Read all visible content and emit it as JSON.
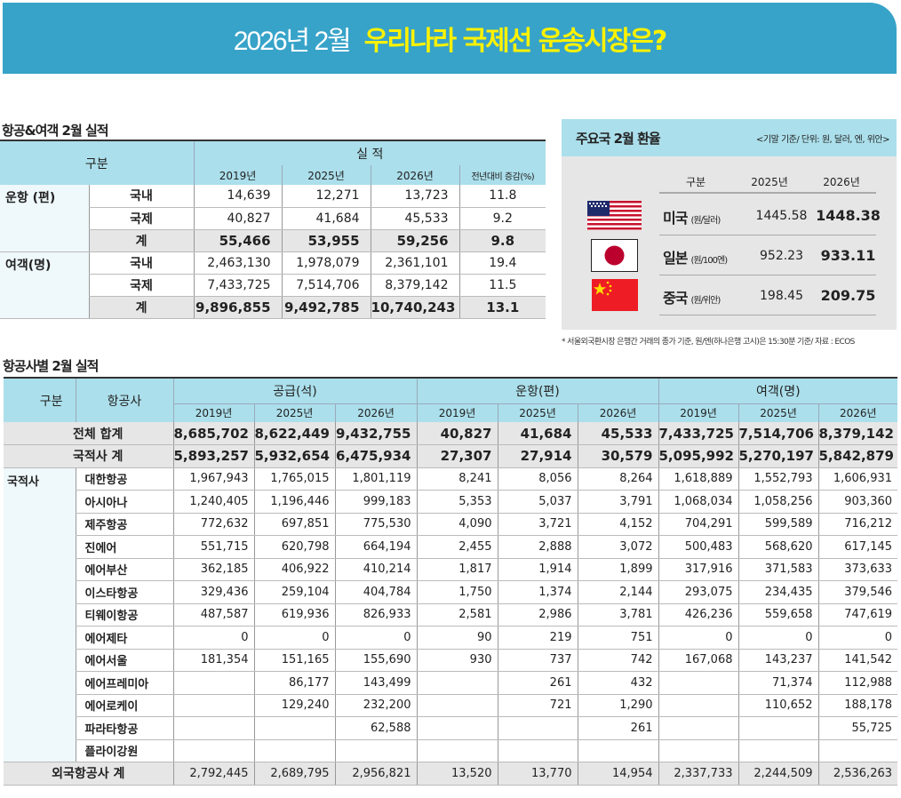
{
  "banner": {
    "date_label": "2026년 2월",
    "headline": "우리나라 국제선 운송시장은?",
    "bg_color": "#37a3c9",
    "headline_color": "#fff200"
  },
  "summary_table": {
    "title": "항공&여객 2월 실적",
    "header": {
      "category": "구분",
      "performance": "실 적",
      "years": [
        "2019년",
        "2025년",
        "2026년"
      ],
      "yoy": "전년대비 증감(%)"
    },
    "groups": [
      {
        "label": "운항 (편)",
        "rows": [
          {
            "sub": "국내",
            "y2019": "14,639",
            "y2025": "12,271",
            "y2026": "13,723",
            "yoy": "11.8"
          },
          {
            "sub": "국제",
            "y2019": "40,827",
            "y2025": "41,684",
            "y2026": "45,533",
            "yoy": "9.2"
          },
          {
            "sub": "계",
            "y2019": "55,466",
            "y2025": "53,955",
            "y2026": "59,256",
            "yoy": "9.8"
          }
        ]
      },
      {
        "label": "여객(명)",
        "rows": [
          {
            "sub": "국내",
            "y2019": "2,463,130",
            "y2025": "1,978,079",
            "y2026": "2,361,101",
            "yoy": "19.4"
          },
          {
            "sub": "국제",
            "y2019": "7,433,725",
            "y2025": "7,514,706",
            "y2026": "8,379,142",
            "yoy": "11.5"
          },
          {
            "sub": "계",
            "y2019": "9,896,855",
            "y2025": "9,492,785",
            "y2026": "10,740,243",
            "yoy": "13.1"
          }
        ]
      }
    ]
  },
  "exchange_rates": {
    "title": "주요국 2월 환율",
    "note": "<기말 기준/ 단위: 원, 달러, 엔, 위안>",
    "columns": [
      "구분",
      "2025년",
      "2026년"
    ],
    "rows": [
      {
        "country": "미국",
        "unit": "(원/달러)",
        "flag": "us-flag",
        "y2025": "1445.58",
        "y2026": "1448.38"
      },
      {
        "country": "일본",
        "unit": "(원/100엔)",
        "flag": "japan-flag",
        "y2025": "952.23",
        "y2026": "933.11"
      },
      {
        "country": "중국",
        "unit": "(원/위안)",
        "flag": "china-flag",
        "y2025": "198.45",
        "y2026": "209.75"
      }
    ],
    "footnote": "* 서울외국환시장 은행간 거래의 종가 기준, 원/엔(하나은행 고시)은 15:30분 기준/ 자료 : ECOS"
  },
  "airline_table": {
    "title": "항공사별 2월 실적",
    "header": {
      "category": "구분",
      "airline": "항공사",
      "groups": [
        "공급(석)",
        "운항(편)",
        "여객(명)"
      ],
      "years": [
        "2019년",
        "2025년",
        "2026년",
        "2019년",
        "2025년",
        "2026년",
        "2019년",
        "2025년",
        "2026년"
      ]
    },
    "total_row": {
      "label": "전체 합계",
      "values": [
        "8,685,702",
        "8,622,449",
        "9,432,755",
        "40,827",
        "41,684",
        "45,533",
        "7,433,725",
        "7,514,706",
        "8,379,142"
      ]
    },
    "domestic_total_row": {
      "label": "국적사 계",
      "values": [
        "5,893,257",
        "5,932,654",
        "6,475,934",
        "27,307",
        "27,914",
        "30,579",
        "5,095,992",
        "5,270,197",
        "5,842,879"
      ]
    },
    "domestic_group_label": "국적사",
    "airlines": [
      {
        "name": "대한항공",
        "values": [
          "1,967,943",
          "1,765,015",
          "1,801,119",
          "8,241",
          "8,056",
          "8,264",
          "1,618,889",
          "1,552,793",
          "1,606,931"
        ]
      },
      {
        "name": "아시아나",
        "values": [
          "1,240,405",
          "1,196,446",
          "999,183",
          "5,353",
          "5,037",
          "3,791",
          "1,068,034",
          "1,058,256",
          "903,360"
        ]
      },
      {
        "name": "제주항공",
        "values": [
          "772,632",
          "697,851",
          "775,530",
          "4,090",
          "3,721",
          "4,152",
          "704,291",
          "599,589",
          "716,212"
        ]
      },
      {
        "name": "진에어",
        "values": [
          "551,715",
          "620,798",
          "664,194",
          "2,455",
          "2,888",
          "3,072",
          "500,483",
          "568,620",
          "617,145"
        ]
      },
      {
        "name": "에어부산",
        "values": [
          "362,185",
          "406,922",
          "410,214",
          "1,817",
          "1,914",
          "1,899",
          "317,916",
          "371,583",
          "373,633"
        ]
      },
      {
        "name": "이스타항공",
        "values": [
          "329,436",
          "259,104",
          "404,784",
          "1,750",
          "1,374",
          "2,144",
          "293,075",
          "234,435",
          "379,546"
        ]
      },
      {
        "name": "티웨이항공",
        "values": [
          "487,587",
          "619,936",
          "826,933",
          "2,581",
          "2,986",
          "3,781",
          "426,236",
          "559,658",
          "747,619"
        ]
      },
      {
        "name": "에어제타",
        "values": [
          "0",
          "0",
          "0",
          "90",
          "219",
          "751",
          "0",
          "0",
          "0"
        ]
      },
      {
        "name": "에어서울",
        "values": [
          "181,354",
          "151,165",
          "155,690",
          "930",
          "737",
          "742",
          "167,068",
          "143,237",
          "141,542"
        ]
      },
      {
        "name": "에어프레미아",
        "values": [
          "",
          "86,177",
          "143,499",
          "",
          "261",
          "432",
          "",
          "71,374",
          "112,988"
        ]
      },
      {
        "name": "에어로케이",
        "values": [
          "",
          "129,240",
          "232,200",
          "",
          "721",
          "1,290",
          "",
          "110,652",
          "188,178"
        ]
      },
      {
        "name": "파라타항공",
        "values": [
          "",
          "",
          "62,588",
          "",
          "",
          "261",
          "",
          "",
          "55,725"
        ]
      },
      {
        "name": "플라이강원",
        "values": [
          "",
          "",
          "",
          "",
          "",
          "",
          "",
          "",
          ""
        ]
      }
    ],
    "foreign_total_row": {
      "label": "외국항공사 계",
      "values": [
        "2,792,445",
        "2,689,795",
        "2,956,821",
        "13,520",
        "13,770",
        "14,954",
        "2,337,733",
        "2,244,509",
        "2,536,263"
      ]
    }
  }
}
